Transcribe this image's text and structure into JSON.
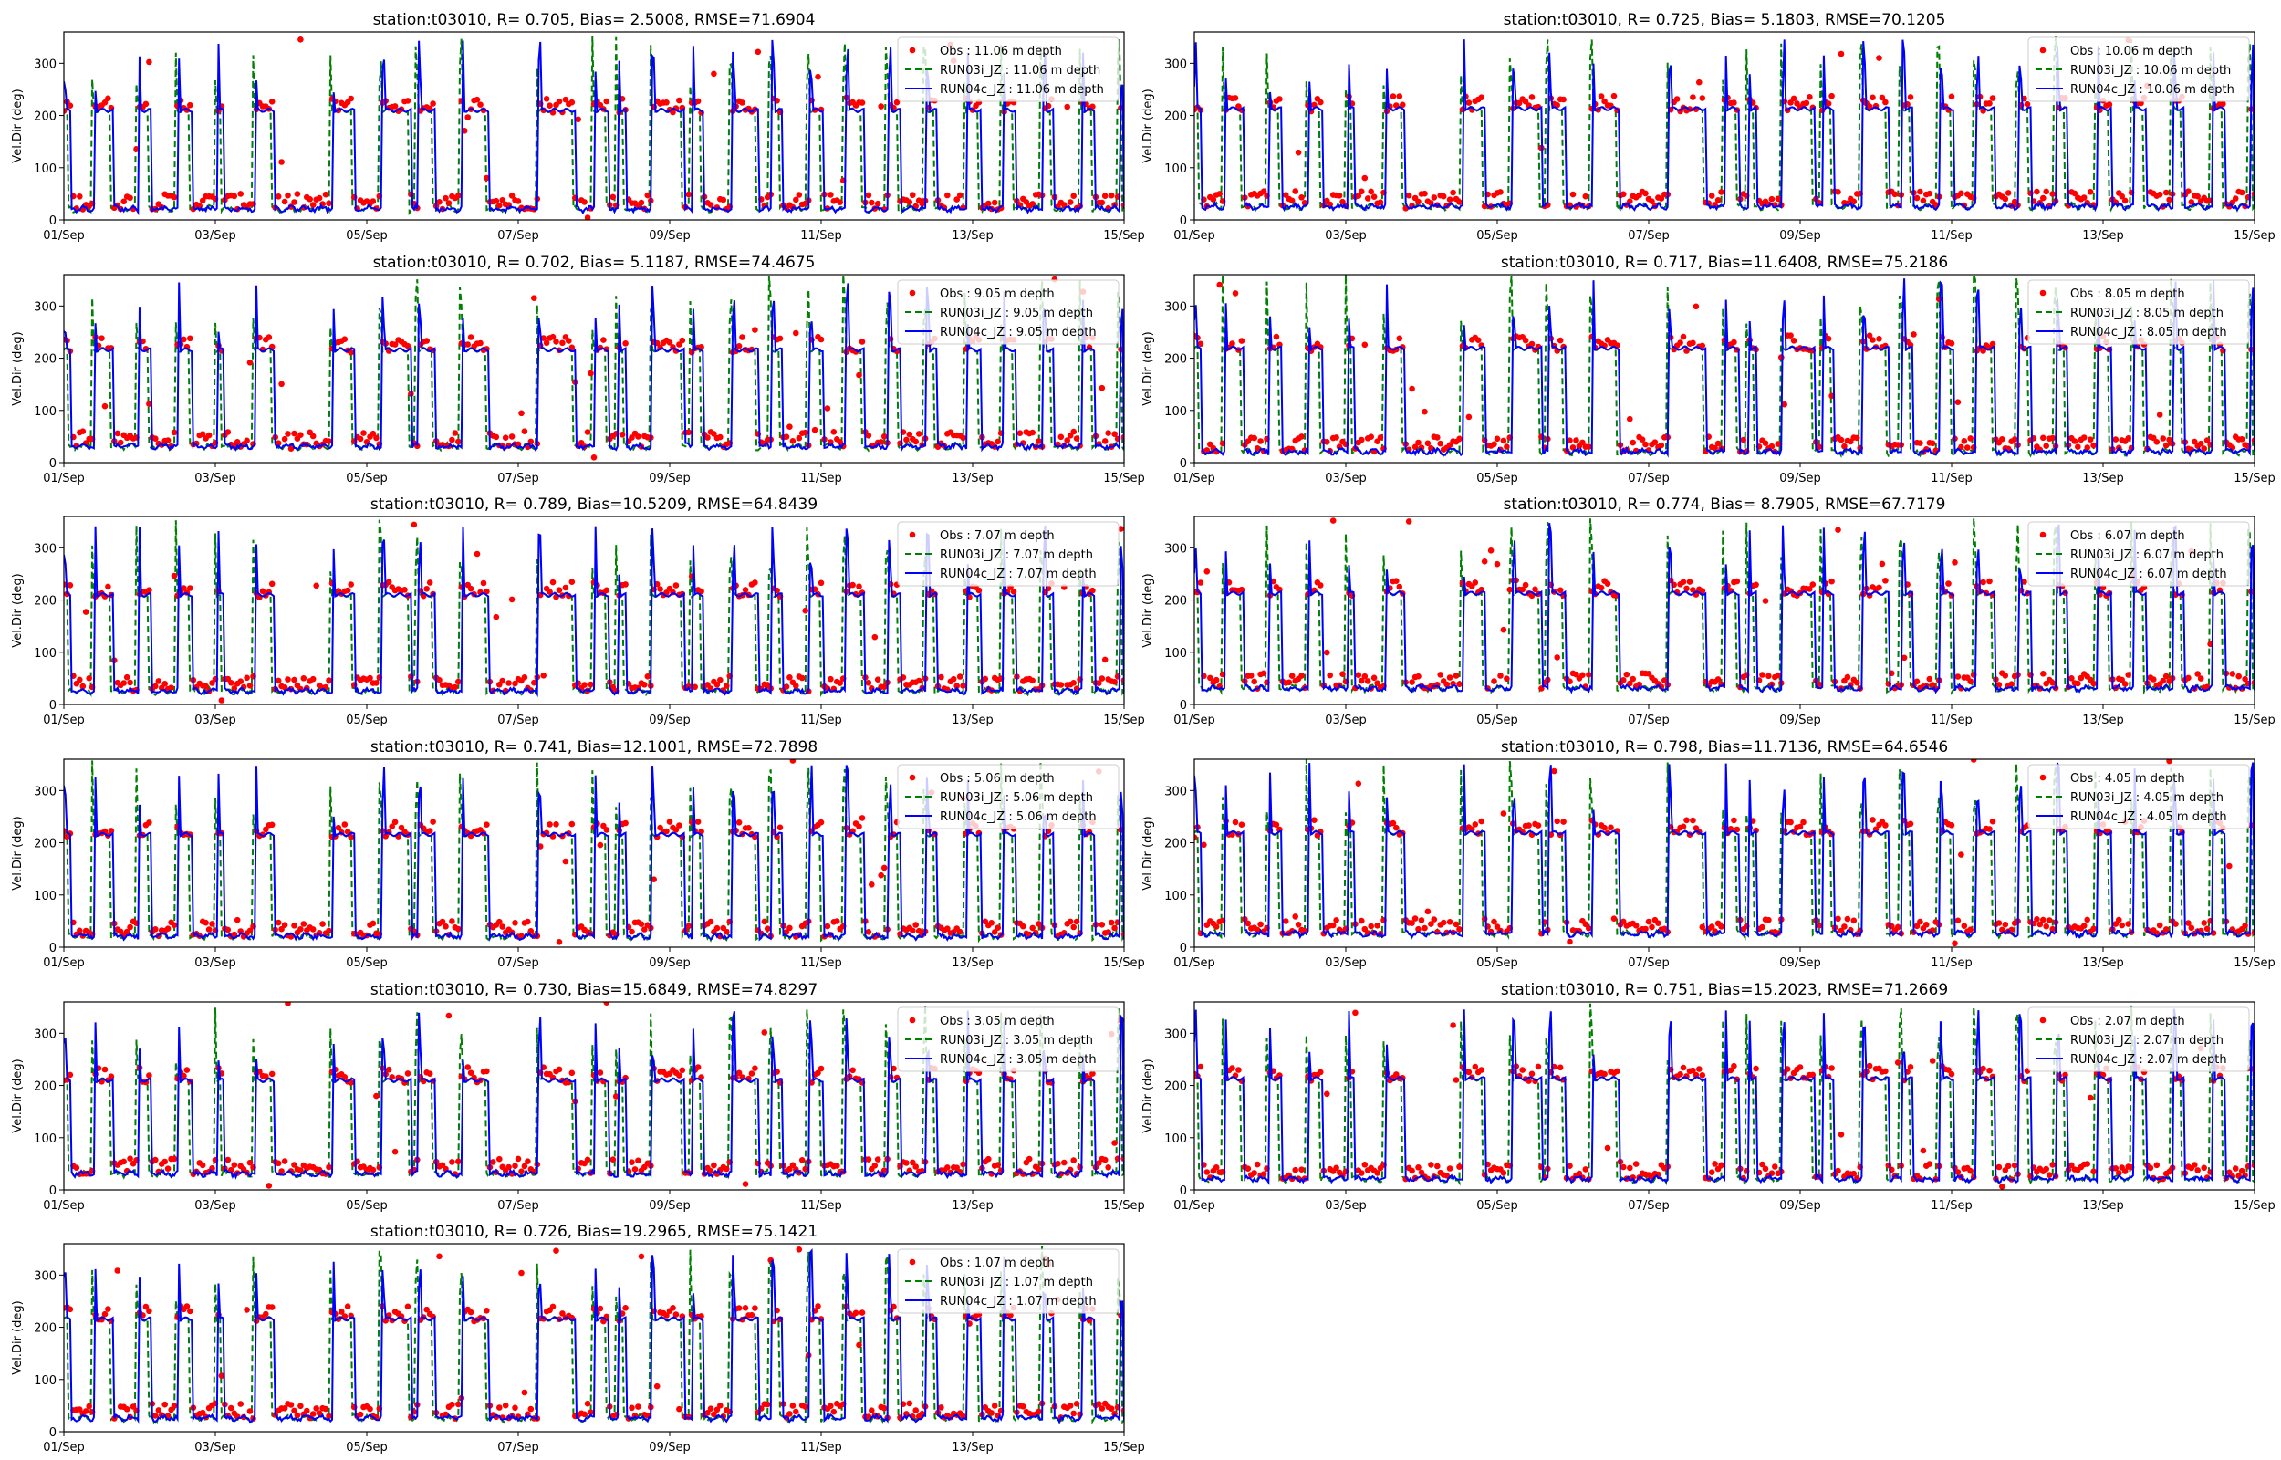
{
  "chart_data": {
    "type": "line",
    "layout": "grid 6 rows x 2 columns (11 panels)",
    "xlabel": "",
    "ylabel": "Vel.Dir (deg)",
    "ylim": [
      0,
      360
    ],
    "xlim_days": [
      0,
      14
    ],
    "yticks": [
      0,
      100,
      200,
      300
    ],
    "xticks": [
      "01/Sep",
      "03/Sep",
      "05/Sep",
      "07/Sep",
      "09/Sep",
      "11/Sep",
      "13/Sep",
      "15/Sep"
    ],
    "legend_position": "top-right",
    "series_styles": [
      {
        "name": "Obs",
        "kind": "scatter",
        "color": "#ff0000"
      },
      {
        "name": "RUN03i_JZ",
        "kind": "dashed-line",
        "color": "#008000"
      },
      {
        "name": "RUN04c_JZ",
        "kind": "line",
        "color": "#0000ff"
      }
    ],
    "high_phase_intervals_days": [
      [
        0,
        0.1
      ],
      [
        0.4,
        0.65
      ],
      [
        0.98,
        1.16
      ],
      [
        1.5,
        1.7
      ],
      [
        2.03,
        2.12
      ],
      [
        2.53,
        2.78
      ],
      [
        3.55,
        3.84
      ],
      [
        4.2,
        4.59
      ],
      [
        4.68,
        4.9
      ],
      [
        5.26,
        5.62
      ],
      [
        6.27,
        6.76
      ],
      [
        7.0,
        7.2
      ],
      [
        7.32,
        7.43
      ],
      [
        7.77,
        8.19
      ],
      [
        8.3,
        8.45
      ],
      [
        8.83,
        9.17
      ],
      [
        9.35,
        9.48
      ],
      [
        9.85,
        10.04
      ],
      [
        10.33,
        10.57
      ],
      [
        10.89,
        11.05
      ],
      [
        11.39,
        11.54
      ],
      [
        11.92,
        12.11
      ],
      [
        12.4,
        12.58
      ],
      [
        12.93,
        13.08
      ],
      [
        13.44,
        13.61
      ],
      [
        13.95,
        14.0
      ]
    ],
    "typical_low_deg": 30,
    "typical_high_deg": 215,
    "panels": [
      {
        "title": "station:t03010, R= 0.705, Bias= 2.5008, RMSE=71.6904",
        "depth": "11.06",
        "legend": [
          "Obs : 11.06 m depth",
          "RUN03i_JZ : 11.06 m depth",
          "RUN04c_JZ : 11.06 m depth"
        ],
        "R": 0.705,
        "Bias": 2.5008,
        "RMSE": 71.6904
      },
      {
        "title": "station:t03010, R= 0.725, Bias= 5.1803, RMSE=70.1205",
        "depth": "10.06",
        "legend": [
          "Obs : 10.06 m depth",
          "RUN03i_JZ : 10.06 m depth",
          "RUN04c_JZ : 10.06 m depth"
        ],
        "R": 0.725,
        "Bias": 5.1803,
        "RMSE": 70.1205
      },
      {
        "title": "station:t03010, R= 0.702, Bias= 5.1187, RMSE=74.4675",
        "depth": "9.05",
        "legend": [
          "Obs : 9.05 m depth",
          "RUN03i_JZ : 9.05 m depth",
          "RUN04c_JZ : 9.05 m depth"
        ],
        "R": 0.702,
        "Bias": 5.1187,
        "RMSE": 74.4675
      },
      {
        "title": "station:t03010, R= 0.717, Bias=11.6408, RMSE=75.2186",
        "depth": "8.05",
        "legend": [
          "Obs : 8.05 m depth",
          "RUN03i_JZ : 8.05 m depth",
          "RUN04c_JZ : 8.05 m depth"
        ],
        "R": 0.717,
        "Bias": 11.6408,
        "RMSE": 75.2186
      },
      {
        "title": "station:t03010, R= 0.789, Bias=10.5209, RMSE=64.8439",
        "depth": "7.07",
        "legend": [
          "Obs : 7.07 m depth",
          "RUN03i_JZ : 7.07 m depth",
          "RUN04c_JZ : 7.07 m depth"
        ],
        "R": 0.789,
        "Bias": 10.5209,
        "RMSE": 64.8439
      },
      {
        "title": "station:t03010, R= 0.774, Bias= 8.7905, RMSE=67.7179",
        "depth": "6.07",
        "legend": [
          "Obs : 6.07 m depth",
          "RUN03i_JZ : 6.07 m depth",
          "RUN04c_JZ : 6.07 m depth"
        ],
        "R": 0.774,
        "Bias": 8.7905,
        "RMSE": 67.7179
      },
      {
        "title": "station:t03010, R= 0.741, Bias=12.1001, RMSE=72.7898",
        "depth": "5.06",
        "legend": [
          "Obs : 5.06 m depth",
          "RUN03i_JZ : 5.06 m depth",
          "RUN04c_JZ : 5.06 m depth"
        ],
        "R": 0.741,
        "Bias": 12.1001,
        "RMSE": 72.7898
      },
      {
        "title": "station:t03010, R= 0.798, Bias=11.7136, RMSE=64.6546",
        "depth": "4.05",
        "legend": [
          "Obs : 4.05 m depth",
          "RUN03i_JZ : 4.05 m depth",
          "RUN04c_JZ : 4.05 m depth"
        ],
        "R": 0.798,
        "Bias": 11.7136,
        "RMSE": 64.6546
      },
      {
        "title": "station:t03010, R= 0.730, Bias=15.6849, RMSE=74.8297",
        "depth": "3.05",
        "legend": [
          "Obs : 3.05 m depth",
          "RUN03i_JZ : 3.05 m depth",
          "RUN04c_JZ : 3.05 m depth"
        ],
        "R": 0.73,
        "Bias": 15.6849,
        "RMSE": 74.8297
      },
      {
        "title": "station:t03010, R= 0.751, Bias=15.2023, RMSE=71.2669",
        "depth": "2.07",
        "legend": [
          "Obs : 2.07 m depth",
          "RUN03i_JZ : 2.07 m depth",
          "RUN04c_JZ : 2.07 m depth"
        ],
        "R": 0.751,
        "Bias": 15.2023,
        "RMSE": 71.2669
      },
      {
        "title": "station:t03010, R= 0.726, Bias=19.2965, RMSE=75.1421",
        "depth": "1.07",
        "legend": [
          "Obs : 1.07 m depth",
          "RUN03i_JZ : 1.07 m depth",
          "RUN04c_JZ : 1.07 m depth"
        ],
        "R": 0.726,
        "Bias": 19.2965,
        "RMSE": 75.1421
      }
    ]
  }
}
